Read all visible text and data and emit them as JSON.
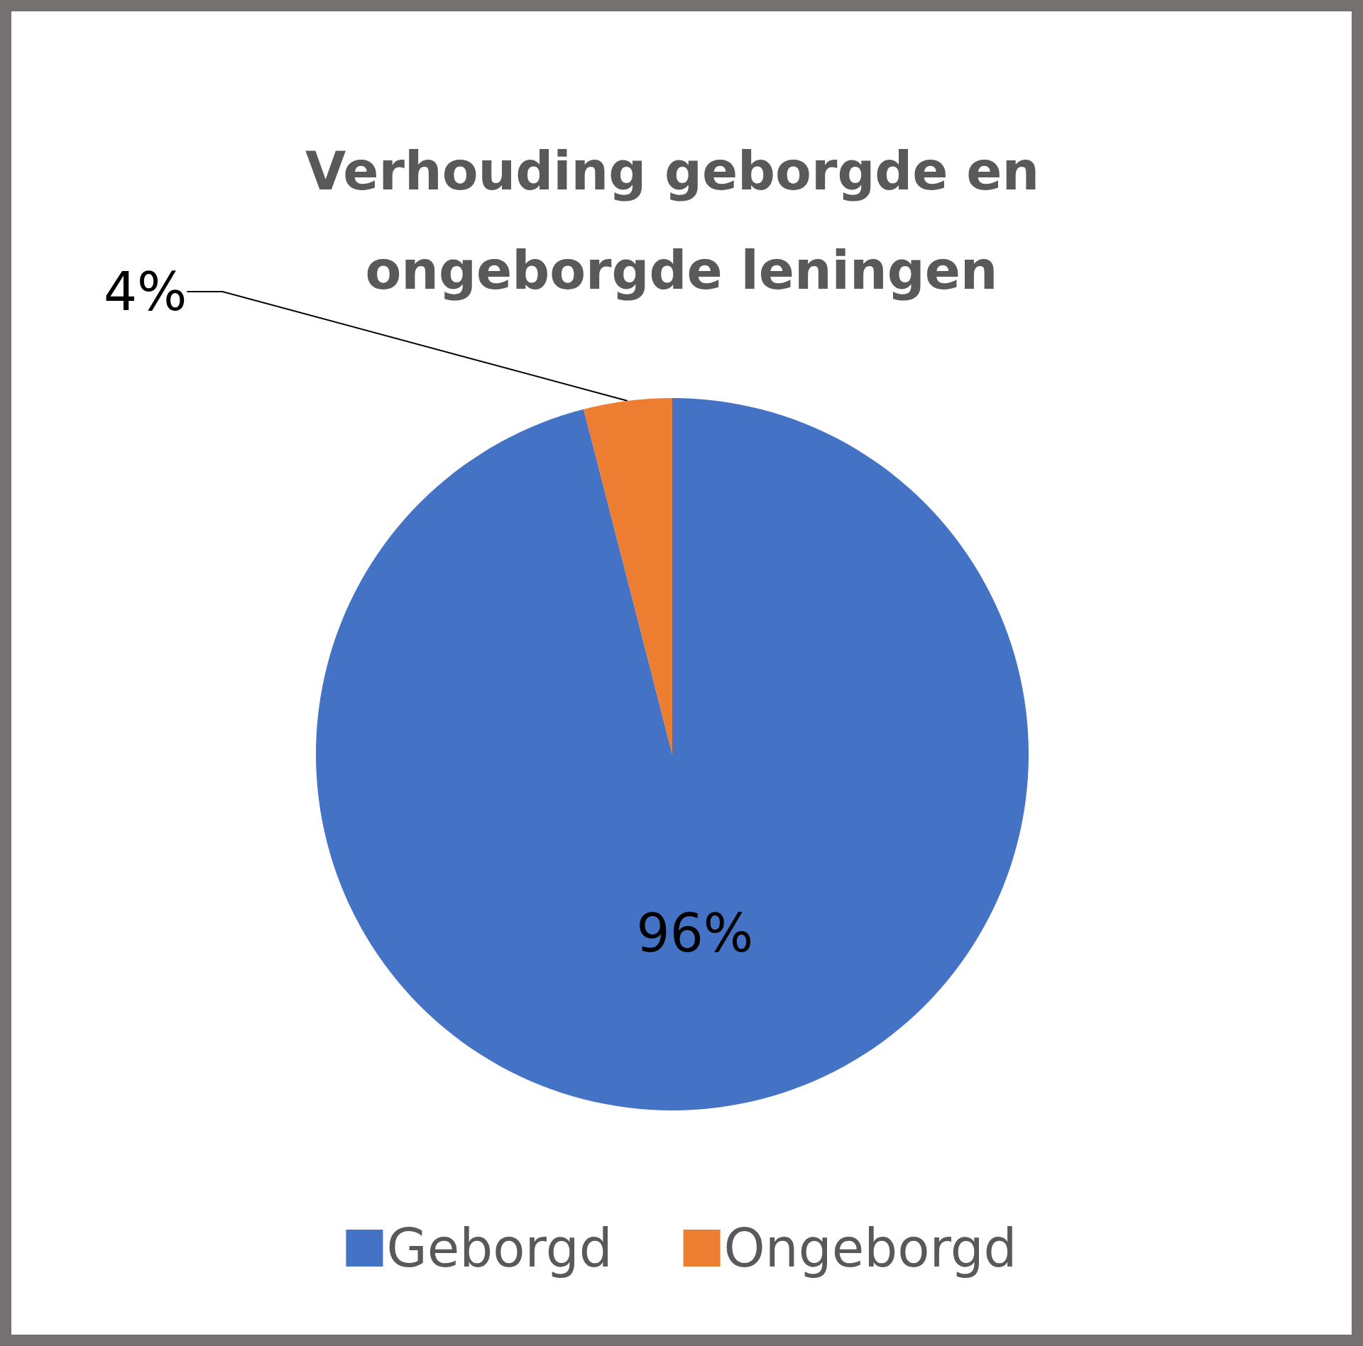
{
  "chart_data": {
    "type": "pie",
    "title": "Verhouding geborgde en ongeborgde leningen",
    "categories": [
      "Geborgd",
      "Ongeborgd"
    ],
    "values": [
      96,
      4
    ],
    "value_labels": [
      "96%",
      "4%"
    ],
    "colors": [
      "#4472c4",
      "#ed7d31"
    ],
    "legend": "bottom"
  }
}
